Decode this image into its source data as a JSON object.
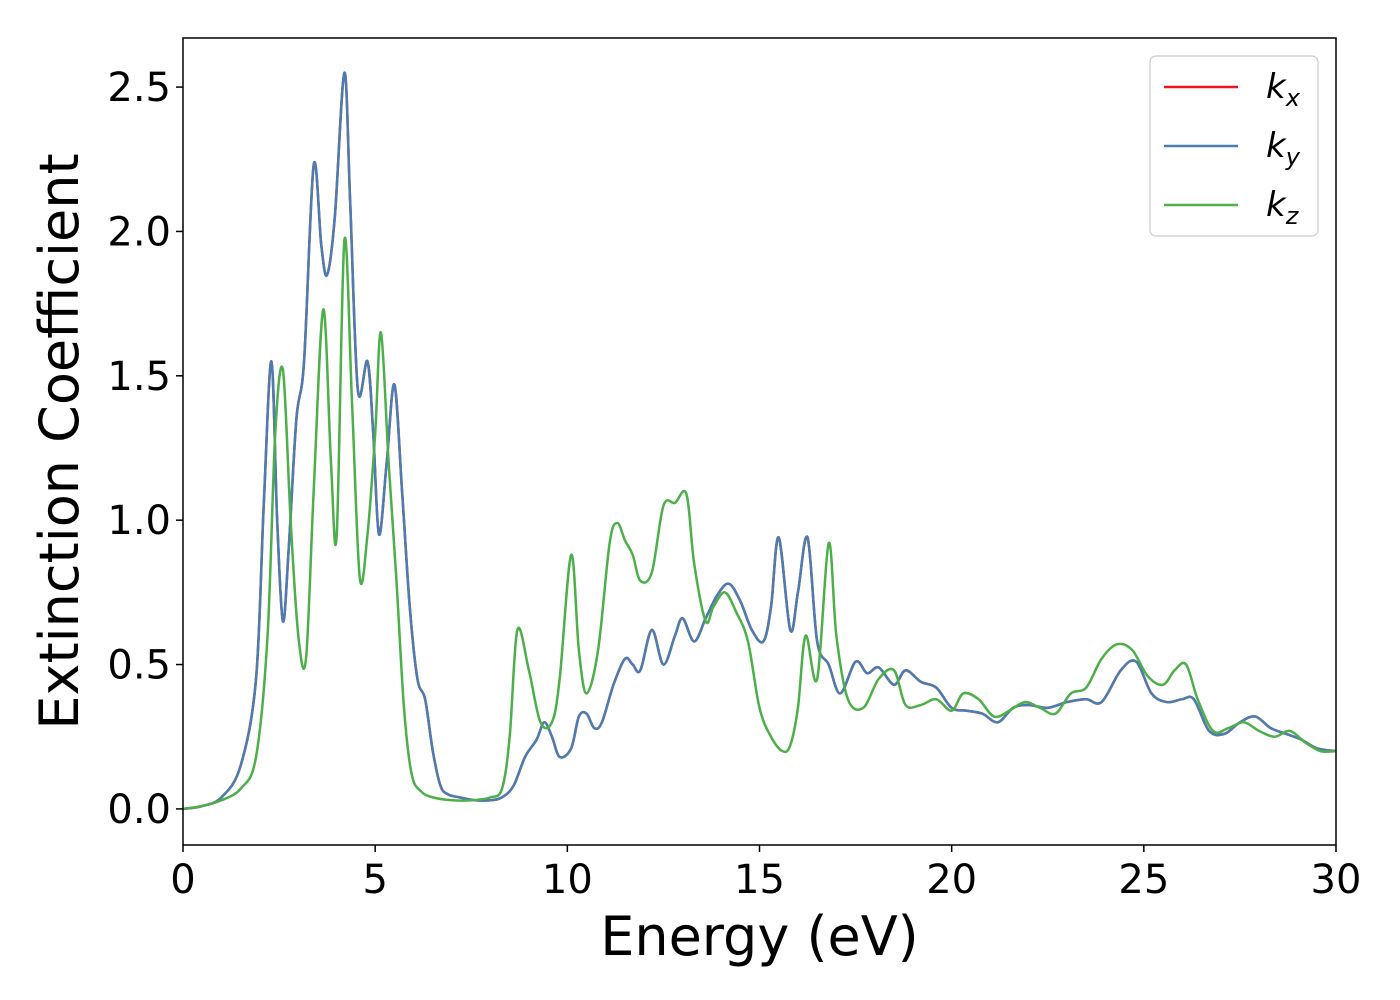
{
  "chart_data": {
    "type": "line",
    "xlabel": "Energy (eV)",
    "ylabel": "Extinction Coefficient",
    "xlim": [
      0,
      30
    ],
    "ylim": [
      -0.125,
      2.67
    ],
    "xticks": [
      0,
      5,
      10,
      15,
      20,
      25,
      30
    ],
    "yticks": [
      0.0,
      0.5,
      1.0,
      1.5,
      2.0,
      2.5
    ],
    "xtick_labels": [
      "0",
      "5",
      "10",
      "15",
      "20",
      "25",
      "30"
    ],
    "ytick_labels": [
      "0.0",
      "0.5",
      "1.0",
      "1.5",
      "2.0",
      "2.5"
    ],
    "grid": false,
    "legend_position": "top-right",
    "series": [
      {
        "name": "k_x",
        "label_base": "k",
        "label_sub": "x",
        "color": "#e41a1c",
        "x": [
          0,
          0.5,
          1.0,
          1.5,
          1.9,
          2.1,
          2.3,
          2.45,
          2.6,
          2.75,
          2.95,
          3.15,
          3.4,
          3.6,
          3.75,
          3.95,
          4.2,
          4.35,
          4.55,
          4.8,
          4.95,
          5.1,
          5.3,
          5.5,
          5.7,
          5.9,
          6.1,
          6.3,
          6.5,
          6.7,
          6.9,
          7.2,
          7.6,
          8.0,
          8.3,
          8.6,
          8.9,
          9.2,
          9.4,
          9.6,
          9.8,
          10.1,
          10.3,
          10.5,
          10.7,
          10.9,
          11.2,
          11.5,
          11.7,
          11.9,
          12.2,
          12.5,
          12.8,
          13.0,
          13.3,
          13.6,
          13.9,
          14.2,
          14.5,
          14.8,
          15.1,
          15.3,
          15.5,
          15.8,
          16.0,
          16.25,
          16.5,
          16.8,
          17.1,
          17.5,
          17.8,
          18.1,
          18.5,
          18.8,
          19.2,
          19.6,
          20.0,
          20.4,
          20.8,
          21.2,
          21.6,
          22.0,
          22.5,
          23.0,
          23.5,
          23.9,
          24.4,
          24.8,
          25.2,
          25.6,
          26.0,
          26.3,
          26.7,
          27.1,
          27.5,
          27.9,
          28.3,
          28.7,
          29.1,
          29.5,
          30.0
        ],
        "values": [
          0.0,
          0.01,
          0.04,
          0.15,
          0.45,
          1.05,
          1.55,
          1.0,
          0.65,
          0.9,
          1.35,
          1.55,
          2.23,
          1.95,
          1.85,
          2.05,
          2.55,
          2.1,
          1.45,
          1.55,
          1.3,
          0.95,
          1.2,
          1.47,
          1.1,
          0.7,
          0.45,
          0.38,
          0.2,
          0.08,
          0.05,
          0.04,
          0.03,
          0.03,
          0.04,
          0.08,
          0.18,
          0.24,
          0.3,
          0.25,
          0.18,
          0.21,
          0.32,
          0.33,
          0.28,
          0.3,
          0.43,
          0.52,
          0.5,
          0.48,
          0.62,
          0.5,
          0.6,
          0.66,
          0.58,
          0.66,
          0.74,
          0.78,
          0.72,
          0.62,
          0.58,
          0.7,
          0.94,
          0.62,
          0.75,
          0.94,
          0.58,
          0.5,
          0.4,
          0.51,
          0.47,
          0.49,
          0.43,
          0.48,
          0.44,
          0.42,
          0.35,
          0.34,
          0.33,
          0.3,
          0.35,
          0.36,
          0.35,
          0.37,
          0.38,
          0.37,
          0.48,
          0.51,
          0.4,
          0.37,
          0.38,
          0.38,
          0.27,
          0.26,
          0.3,
          0.32,
          0.28,
          0.26,
          0.24,
          0.21,
          0.2
        ]
      },
      {
        "name": "k_y",
        "label_base": "k",
        "label_sub": "y",
        "color": "#4a7db3",
        "x": [
          0,
          0.5,
          1.0,
          1.5,
          1.9,
          2.1,
          2.3,
          2.45,
          2.6,
          2.75,
          2.95,
          3.15,
          3.4,
          3.6,
          3.75,
          3.95,
          4.2,
          4.35,
          4.55,
          4.8,
          4.95,
          5.1,
          5.3,
          5.5,
          5.7,
          5.9,
          6.1,
          6.3,
          6.5,
          6.7,
          6.9,
          7.2,
          7.6,
          8.0,
          8.3,
          8.6,
          8.9,
          9.2,
          9.4,
          9.6,
          9.8,
          10.1,
          10.3,
          10.5,
          10.7,
          10.9,
          11.2,
          11.5,
          11.7,
          11.9,
          12.2,
          12.5,
          12.8,
          13.0,
          13.3,
          13.6,
          13.9,
          14.2,
          14.5,
          14.8,
          15.1,
          15.3,
          15.5,
          15.8,
          16.0,
          16.25,
          16.5,
          16.8,
          17.1,
          17.5,
          17.8,
          18.1,
          18.5,
          18.8,
          19.2,
          19.6,
          20.0,
          20.4,
          20.8,
          21.2,
          21.6,
          22.0,
          22.5,
          23.0,
          23.5,
          23.9,
          24.4,
          24.8,
          25.2,
          25.6,
          26.0,
          26.3,
          26.7,
          27.1,
          27.5,
          27.9,
          28.3,
          28.7,
          29.1,
          29.5,
          30.0
        ],
        "values": [
          0.0,
          0.01,
          0.04,
          0.15,
          0.45,
          1.05,
          1.55,
          1.0,
          0.65,
          0.9,
          1.35,
          1.55,
          2.23,
          1.95,
          1.85,
          2.05,
          2.55,
          2.1,
          1.45,
          1.55,
          1.3,
          0.95,
          1.2,
          1.47,
          1.1,
          0.7,
          0.45,
          0.38,
          0.2,
          0.08,
          0.05,
          0.04,
          0.03,
          0.03,
          0.04,
          0.08,
          0.18,
          0.24,
          0.3,
          0.25,
          0.18,
          0.21,
          0.32,
          0.33,
          0.28,
          0.3,
          0.43,
          0.52,
          0.5,
          0.48,
          0.62,
          0.5,
          0.6,
          0.66,
          0.58,
          0.66,
          0.74,
          0.78,
          0.72,
          0.62,
          0.58,
          0.7,
          0.94,
          0.62,
          0.75,
          0.94,
          0.58,
          0.5,
          0.4,
          0.51,
          0.47,
          0.49,
          0.43,
          0.48,
          0.44,
          0.42,
          0.35,
          0.34,
          0.33,
          0.3,
          0.35,
          0.36,
          0.35,
          0.37,
          0.38,
          0.37,
          0.48,
          0.51,
          0.4,
          0.37,
          0.38,
          0.38,
          0.27,
          0.26,
          0.3,
          0.32,
          0.28,
          0.26,
          0.24,
          0.21,
          0.2
        ]
      },
      {
        "name": "k_z",
        "label_base": "k",
        "label_sub": "z",
        "color": "#4daf4a",
        "x": [
          0,
          0.5,
          1.0,
          1.5,
          1.9,
          2.2,
          2.4,
          2.6,
          2.8,
          3.0,
          3.2,
          3.4,
          3.65,
          3.85,
          4.0,
          4.2,
          4.4,
          4.6,
          4.8,
          5.0,
          5.15,
          5.35,
          5.55,
          5.75,
          5.95,
          6.2,
          6.5,
          7.0,
          7.5,
          8.0,
          8.3,
          8.5,
          8.7,
          9.0,
          9.3,
          9.6,
          9.8,
          10.1,
          10.3,
          10.5,
          10.8,
          11.1,
          11.3,
          11.5,
          11.7,
          11.9,
          12.2,
          12.5,
          12.8,
          13.1,
          13.3,
          13.6,
          13.8,
          14.1,
          14.4,
          14.7,
          15.0,
          15.3,
          15.6,
          15.8,
          16.0,
          16.2,
          16.5,
          16.8,
          17.0,
          17.3,
          17.7,
          18.1,
          18.5,
          18.8,
          19.2,
          19.6,
          20.0,
          20.3,
          20.7,
          21.1,
          21.5,
          21.9,
          22.3,
          22.7,
          23.1,
          23.5,
          23.9,
          24.3,
          24.7,
          25.1,
          25.5,
          25.8,
          26.1,
          26.4,
          26.8,
          27.2,
          27.6,
          28.0,
          28.4,
          28.8,
          29.2,
          29.6,
          30.0
        ],
        "values": [
          0.0,
          0.01,
          0.03,
          0.07,
          0.18,
          0.6,
          1.3,
          1.52,
          1.0,
          0.6,
          0.52,
          1.1,
          1.73,
          1.2,
          0.95,
          1.97,
          1.4,
          0.8,
          0.95,
          1.3,
          1.65,
          1.2,
          0.8,
          0.35,
          0.12,
          0.06,
          0.04,
          0.03,
          0.03,
          0.04,
          0.07,
          0.25,
          0.62,
          0.48,
          0.3,
          0.3,
          0.45,
          0.88,
          0.55,
          0.4,
          0.55,
          0.92,
          0.99,
          0.93,
          0.88,
          0.79,
          0.82,
          1.05,
          1.06,
          1.09,
          0.85,
          0.65,
          0.7,
          0.75,
          0.68,
          0.58,
          0.35,
          0.25,
          0.2,
          0.22,
          0.35,
          0.6,
          0.45,
          0.92,
          0.6,
          0.38,
          0.35,
          0.45,
          0.48,
          0.36,
          0.36,
          0.38,
          0.34,
          0.4,
          0.38,
          0.32,
          0.34,
          0.37,
          0.35,
          0.33,
          0.4,
          0.42,
          0.52,
          0.57,
          0.55,
          0.46,
          0.43,
          0.48,
          0.5,
          0.38,
          0.27,
          0.28,
          0.3,
          0.27,
          0.25,
          0.27,
          0.23,
          0.2,
          0.2
        ]
      }
    ]
  }
}
